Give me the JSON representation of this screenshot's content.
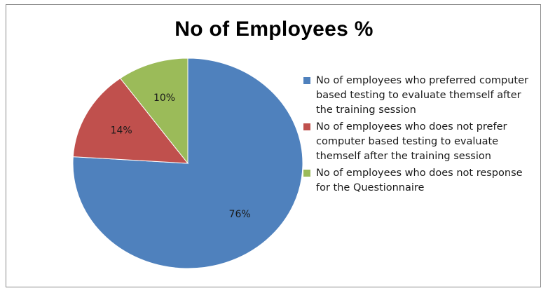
{
  "chart_data": {
    "type": "pie",
    "title": "No of Employees %",
    "slices": [
      {
        "label": "No of employees who preferred computer based testing to evaluate themself after the training session",
        "value": 76,
        "data_label": "76%",
        "color": "#4F81BD"
      },
      {
        "label": "No of employees who does not prefer computer based testing to evaluate themself after the training session",
        "value": 14,
        "data_label": "14%",
        "color": "#C0504D"
      },
      {
        "label": "No of employees who does not response for the Questionnaire",
        "value": 10,
        "data_label": "10%",
        "color": "#9BBB59"
      }
    ],
    "legend_position": "right"
  }
}
